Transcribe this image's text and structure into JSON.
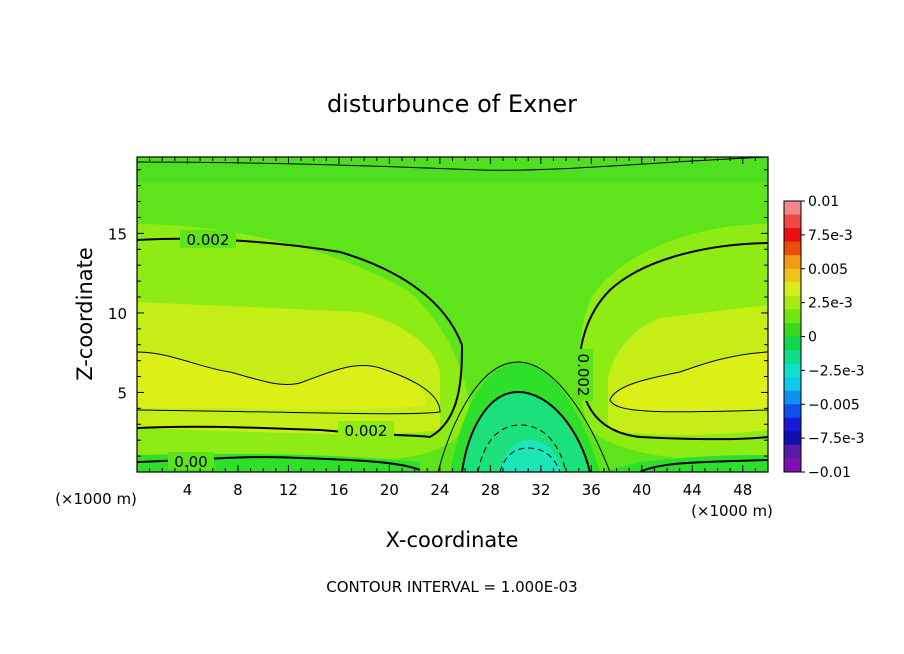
{
  "chart_data": {
    "type": "heatmap",
    "title": "disturbunce of Exner",
    "xlabel": "X-coordinate",
    "ylabel": "Z-coordinate",
    "x_unit": "(×1000 m)",
    "y_unit": "(×1000 m)",
    "xlim": [
      0,
      50
    ],
    "ylim": [
      0,
      19.8
    ],
    "x_ticks": [
      4,
      8,
      12,
      16,
      20,
      24,
      28,
      32,
      36,
      40,
      44,
      48
    ],
    "y_ticks": [
      5,
      10,
      15
    ],
    "contour_labels": [
      "0.002",
      "0.002",
      "0.002",
      "0.00"
    ],
    "footer": "CONTOUR INTERVAL = 1.000E-03",
    "colorbar": {
      "labels": [
        "0.01",
        "7.5e-3",
        "0.005",
        "2.5e-3",
        "0",
        "−2.5e-3",
        "−0.005",
        "−7.5e-3",
        "−0.01"
      ],
      "bands": [
        "#f08a8a",
        "#f04848",
        "#e81010",
        "#e8500a",
        "#f29a12",
        "#f0c21c",
        "#d8ee1c",
        "#a8ea14",
        "#70e60e",
        "#38d81c",
        "#10d84c",
        "#10dc8c",
        "#10e0c8",
        "#10c8ec",
        "#1090ee",
        "#1050ec",
        "#1818d8",
        "#1010b0",
        "#5a1aa8",
        "#8010b0"
      ]
    },
    "colors": {
      "green_bright": "#2ee02a",
      "green": "#5ee41a",
      "yellow_green": "#8eec14",
      "yellow": "#c4ee16",
      "yellow_core": "#dcf018",
      "cyan_green": "#1ce07a",
      "cyan": "#1ae6b8"
    }
  }
}
